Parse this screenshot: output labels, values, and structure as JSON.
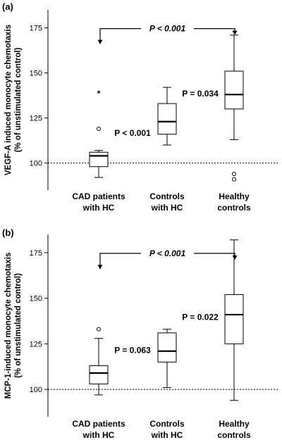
{
  "chart_data": [
    {
      "type": "box",
      "panel_label": "(a)",
      "ylabel_line1": "VEGF-A induced monocyte chemotaxis",
      "ylabel_line2": "(% of unstimulated control)",
      "ylim": [
        85,
        185
      ],
      "yticks": [
        100,
        125,
        150,
        175
      ],
      "reference_line": 100,
      "categories": [
        {
          "line1": "CAD patients",
          "line2": "with HC"
        },
        {
          "line1": "Controls",
          "line2": "with HC"
        },
        {
          "line1": "Healthy",
          "line2": "controls"
        }
      ],
      "boxes": [
        {
          "min": 92,
          "q1": 98,
          "median": 104,
          "q3": 106,
          "max": 107,
          "outliers": [
            119
          ],
          "extremes": [
            139
          ]
        },
        {
          "min": 110,
          "q1": 116,
          "median": 123,
          "q3": 133,
          "max": 142,
          "outliers": [],
          "extremes": []
        },
        {
          "min": 113,
          "q1": 130,
          "median": 138,
          "q3": 151,
          "max": 171,
          "outliers": [
            94,
            91
          ],
          "extremes": []
        }
      ],
      "annotations": {
        "bracket_p": "P < 0.001",
        "pair12_p": "P < 0.001",
        "pair23_p": "P = 0.034"
      }
    },
    {
      "type": "box",
      "panel_label": "(b)",
      "ylabel_line1": "MCP-1-induced monocyte chemotaxis",
      "ylabel_line2": "(% of unstimulated control)",
      "ylim": [
        85,
        185
      ],
      "yticks": [
        100,
        125,
        150,
        175
      ],
      "reference_line": 100,
      "categories": [
        {
          "line1": "CAD patients",
          "line2": "with HC"
        },
        {
          "line1": "Controls",
          "line2": "with HC"
        },
        {
          "line1": "Healthy",
          "line2": "controls"
        }
      ],
      "boxes": [
        {
          "min": 97,
          "q1": 103,
          "median": 109,
          "q3": 113,
          "max": 128,
          "outliers": [
            133
          ],
          "extremes": []
        },
        {
          "min": 101,
          "q1": 115,
          "median": 121,
          "q3": 131,
          "max": 133,
          "outliers": [],
          "extremes": []
        },
        {
          "min": 94,
          "q1": 125,
          "median": 141,
          "q3": 152,
          "max": 182,
          "outliers": [],
          "extremes": []
        }
      ],
      "annotations": {
        "bracket_p": "P < 0.001",
        "pair12_p": "P = 0.063",
        "pair23_p": "P = 0.022"
      }
    }
  ]
}
